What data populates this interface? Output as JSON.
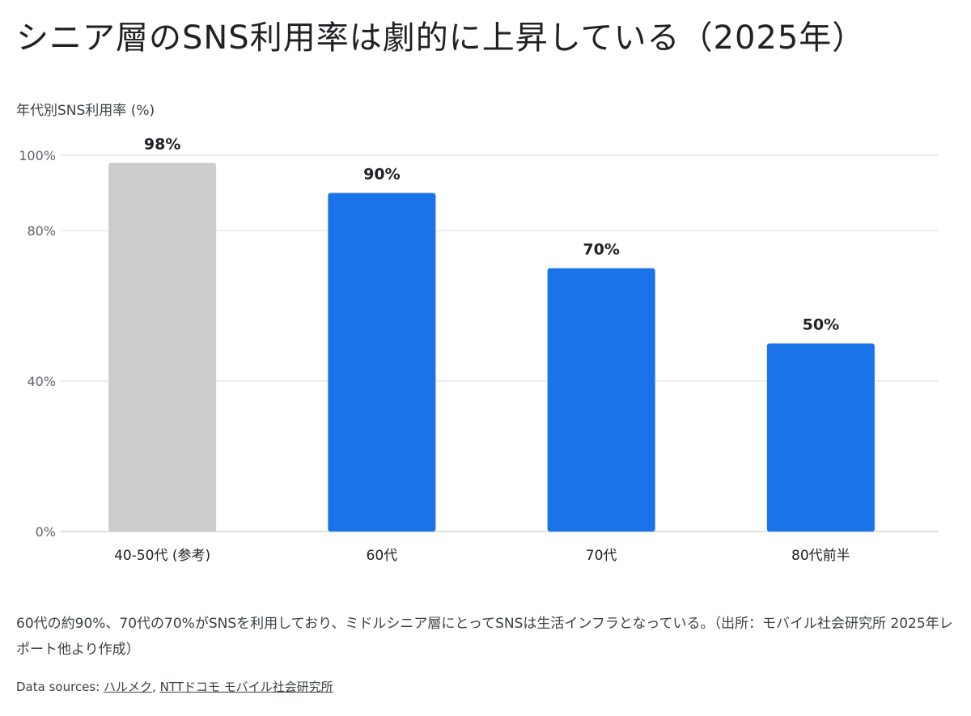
{
  "title": "シニア層のSNS利用率は劇的に上昇している（2025年）",
  "note": "60代の約90%、70代の70%がSNSを利用しており、ミドルシニア層にとってSNSは生活インフラとなっている。（出所：モバイル社会研究所 2025年レポート他より作成）",
  "sources": {
    "prefix": "Data sources: ",
    "items": [
      "ハルメク",
      "NTTドコモ モバイル社会研究所"
    ],
    "separator": ", "
  },
  "colors": {
    "reference_bar": "#cccccc",
    "main_bar": "#1a73e8",
    "grid": "#dadce0",
    "text": "#202124"
  },
  "chart_data": {
    "type": "bar",
    "title": "シニア層のSNS利用率は劇的に上昇している（2025年）",
    "ylabel": "年代別SNS利用率 (%)",
    "xlabel": "",
    "categories": [
      "40-50代 (参考)",
      "60代",
      "70代",
      "80代前半"
    ],
    "values": [
      98,
      90,
      70,
      50
    ],
    "data_labels": [
      "98%",
      "90%",
      "70%",
      "50%"
    ],
    "bar_kinds": [
      "reference",
      "main",
      "main",
      "main"
    ],
    "ylim": [
      0,
      100
    ],
    "yticks": [
      0,
      40,
      80,
      100
    ],
    "ytick_labels": [
      "0%",
      "40%",
      "80%",
      "100%"
    ],
    "grid": true
  }
}
